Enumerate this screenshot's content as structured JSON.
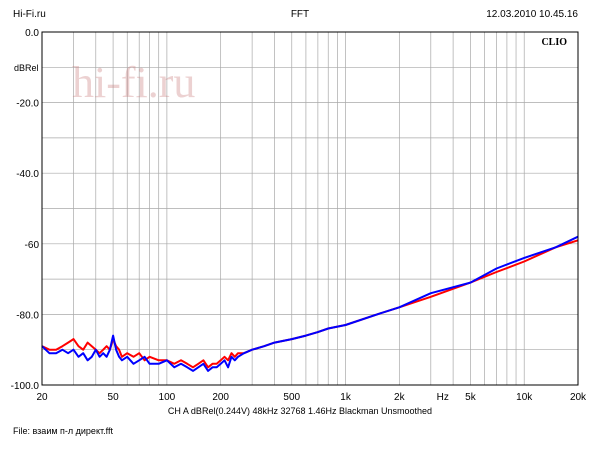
{
  "header": {
    "left": "Hi-Fi.ru",
    "center": "FFT",
    "right": "12.03.2010 10.45.16"
  },
  "watermark": "hi-fi.ru",
  "brand": "CLIO",
  "footer": {
    "status": "CH A  dBRel(0.244V)  48kHz  32768  1.46Hz  Blackman  Unsmoothed",
    "file": "File: взаим п-л директ.fft"
  },
  "colors": {
    "background": "#ffffff",
    "grid": "#a8a8a8",
    "series_red": "#ff0000",
    "series_blue": "#0000ff",
    "watermark": "#c97a7a"
  },
  "chart_data": {
    "type": "line",
    "title": "FFT",
    "xscale": "log",
    "xlim": [
      20,
      20000
    ],
    "ylim": [
      -100,
      0
    ],
    "xlabel": "Hz",
    "ylabel": "dBRel",
    "grid": true,
    "y_ticks": [
      {
        "value": 0,
        "label": "0.0"
      },
      {
        "value": -20,
        "label": "-20.0"
      },
      {
        "value": -40,
        "label": "-40.0"
      },
      {
        "value": -60,
        "label": "-60"
      },
      {
        "value": -80,
        "label": "-80.0"
      },
      {
        "value": -100,
        "label": "-100.0"
      }
    ],
    "x_ticks": [
      {
        "value": 20,
        "label": "20"
      },
      {
        "value": 50,
        "label": "50"
      },
      {
        "value": 100,
        "label": "100"
      },
      {
        "value": 200,
        "label": "200"
      },
      {
        "value": 500,
        "label": "500"
      },
      {
        "value": 1000,
        "label": "1k"
      },
      {
        "value": 2000,
        "label": "2k"
      },
      {
        "value": 3500,
        "label": "Hz"
      },
      {
        "value": 5000,
        "label": "5k"
      },
      {
        "value": 10000,
        "label": "10k"
      },
      {
        "value": 20000,
        "label": "20k"
      }
    ],
    "series": [
      {
        "color": "#ff0000",
        "x": [
          20,
          22,
          24,
          26,
          28,
          30,
          32,
          34,
          36,
          38,
          40,
          42,
          44,
          46,
          48,
          50,
          52,
          54,
          56,
          60,
          65,
          70,
          75,
          80,
          90,
          100,
          110,
          120,
          130,
          140,
          150,
          160,
          170,
          180,
          190,
          200,
          210,
          220,
          230,
          240,
          250,
          270,
          300,
          350,
          400,
          500,
          600,
          700,
          800,
          1000,
          1500,
          2000,
          3000,
          5000,
          7000,
          10000,
          15000,
          20000
        ],
        "y": [
          -89,
          -90,
          -90,
          -89,
          -88,
          -87,
          -89,
          -90,
          -88,
          -89,
          -90,
          -91,
          -90,
          -89,
          -90,
          -87,
          -89,
          -90,
          -92,
          -91,
          -92,
          -91,
          -93,
          -92,
          -93,
          -93,
          -94,
          -93,
          -94,
          -95,
          -94,
          -93,
          -95,
          -94,
          -94,
          -93,
          -92,
          -93,
          -91,
          -92,
          -91,
          -91,
          -90,
          -89,
          -88,
          -87,
          -86,
          -85,
          -84,
          -83,
          -80,
          -78,
          -75,
          -71,
          -68,
          -65,
          -61,
          -59
        ]
      },
      {
        "color": "#0000ff",
        "x": [
          20,
          22,
          24,
          26,
          28,
          30,
          32,
          34,
          36,
          38,
          40,
          42,
          44,
          46,
          48,
          50,
          52,
          54,
          56,
          60,
          65,
          70,
          75,
          80,
          90,
          100,
          110,
          120,
          130,
          140,
          150,
          160,
          170,
          180,
          190,
          200,
          210,
          220,
          230,
          240,
          250,
          270,
          300,
          350,
          400,
          500,
          600,
          700,
          800,
          1000,
          1500,
          2000,
          3000,
          5000,
          7000,
          10000,
          15000,
          20000
        ],
        "y": [
          -89,
          -91,
          -91,
          -90,
          -91,
          -90,
          -92,
          -91,
          -93,
          -92,
          -90,
          -92,
          -91,
          -92,
          -90,
          -86,
          -90,
          -92,
          -93,
          -92,
          -94,
          -93,
          -92,
          -94,
          -94,
          -93,
          -95,
          -94,
          -95,
          -96,
          -95,
          -94,
          -96,
          -95,
          -95,
          -94,
          -93,
          -95,
          -92,
          -93,
          -92,
          -91,
          -90,
          -89,
          -88,
          -87,
          -86,
          -85,
          -84,
          -83,
          -80,
          -78,
          -74,
          -71,
          -67,
          -64,
          -61,
          -58
        ]
      }
    ]
  }
}
